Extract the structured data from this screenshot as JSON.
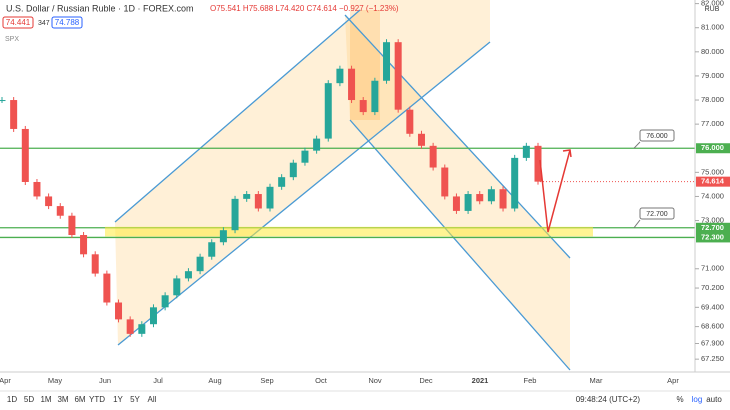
{
  "header": {
    "symbol": "U.S. Dollar / Russian Ruble · 1D · FOREX.com",
    "ohlc": "O75.541 H75.688 L74.420 C74.614 −0.927 (−1.23%)",
    "bid": "74.441",
    "spread": "347",
    "ask": "74.788",
    "indicator": "SPX",
    "currency": "RUB"
  },
  "chart_data": {
    "type": "candlestick",
    "values": [
      78.0,
      76.8,
      74.6,
      74.0,
      73.6,
      73.2,
      72.4,
      71.6,
      70.8,
      69.6,
      68.9,
      68.3,
      68.7,
      69.4,
      69.9,
      70.6,
      70.9,
      71.5,
      72.1,
      72.6,
      73.9,
      74.1,
      73.5,
      74.4,
      74.8,
      75.4,
      75.9,
      76.4,
      78.7,
      79.3,
      78.0,
      77.5,
      78.8,
      80.4,
      77.6,
      76.6,
      76.1,
      75.2,
      74.0,
      73.4,
      74.1,
      73.8,
      74.3,
      73.5,
      75.6,
      76.1,
      74.614
    ],
    "ylim": [
      66.8,
      82.15
    ],
    "yticks": [
      {
        "value": 82,
        "label": "82.000"
      },
      {
        "value": 81,
        "label": "81.000"
      },
      {
        "value": 80,
        "label": "80.000"
      },
      {
        "value": 79,
        "label": "79.000"
      },
      {
        "value": 78,
        "label": "78.000"
      },
      {
        "value": 77,
        "label": "77.000"
      },
      {
        "value": 75,
        "label": "75.000"
      },
      {
        "value": 74,
        "label": "74.000"
      },
      {
        "value": 73,
        "label": "73.000"
      },
      {
        "value": 71,
        "label": "71.000"
      },
      {
        "value": 70.2,
        "label": "70.200"
      },
      {
        "value": 69.4,
        "label": "69.400"
      },
      {
        "value": 68.6,
        "label": "68.600"
      },
      {
        "value": 67.9,
        "label": "67.900"
      },
      {
        "value": 67.25,
        "label": "67.250"
      }
    ],
    "levels": [
      {
        "value": 76,
        "label": "76.000"
      },
      {
        "value": 72.7,
        "label": "72.700"
      },
      {
        "value": 72.3,
        "label": "72.300"
      }
    ],
    "last_price": {
      "value": 74.614,
      "label": "74.614"
    },
    "time_labels": [
      "Apr",
      "May",
      "Jun",
      "Jul",
      "Aug",
      "Sep",
      "Oct",
      "Nov",
      "Dec",
      "2021",
      "Feb",
      "Mar",
      "Apr"
    ]
  },
  "toolbar": {
    "ranges": [
      "1D",
      "5D",
      "1M",
      "3M",
      "6M",
      "YTD",
      "1Y",
      "5Y",
      "All"
    ],
    "time": "09:48:24 (UTC+2)",
    "options": [
      "%",
      "log",
      "auto"
    ]
  }
}
